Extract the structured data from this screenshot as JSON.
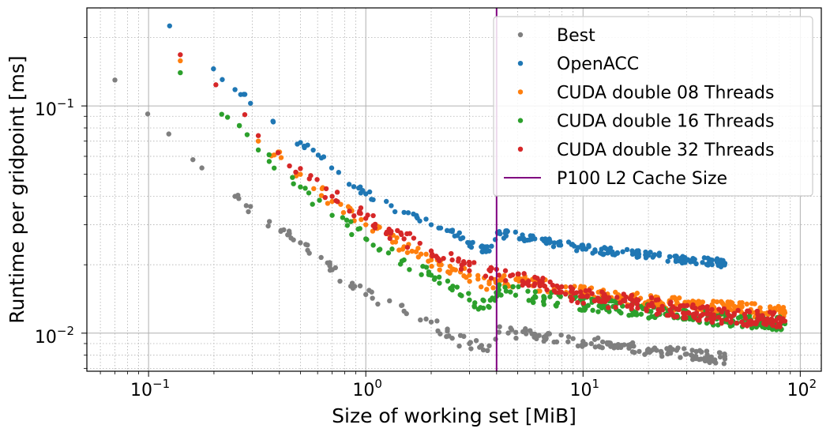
{
  "chart_data": {
    "type": "scatter",
    "xlabel": "Size of working set [MiB]",
    "ylabel": "Runtime per gridpoint [ms]",
    "xscale": "log",
    "yscale": "log",
    "xlim": [
      0.052,
      125
    ],
    "ylim": [
      0.0068,
      0.27
    ],
    "grid": "major and minor",
    "legend_placement": "top-right",
    "x_tick_labels": [
      {
        "base": "10",
        "exp": "−1",
        "value": 0.1
      },
      {
        "base": "10",
        "exp": "0",
        "value": 1
      },
      {
        "base": "10",
        "exp": "1",
        "value": 10
      },
      {
        "base": "10",
        "exp": "2",
        "value": 100
      }
    ],
    "y_tick_labels": [
      {
        "base": "10",
        "exp": "−2",
        "value": 0.01
      },
      {
        "base": "10",
        "exp": "−1",
        "value": 0.1
      }
    ],
    "vline": {
      "name": "P100 L2 Cache Size",
      "x": 4.0,
      "color": "#800080"
    },
    "series": [
      {
        "name": "Best",
        "color": "#7f7f7f",
        "anchors": [
          [
            0.07,
            0.13
          ],
          [
            0.16,
            0.058
          ],
          [
            0.25,
            0.04
          ],
          [
            0.36,
            0.031
          ],
          [
            0.5,
            0.025
          ],
          [
            0.7,
            0.019
          ],
          [
            1.0,
            0.0148
          ],
          [
            1.5,
            0.0125
          ],
          [
            2.0,
            0.0112
          ],
          [
            2.5,
            0.0095
          ],
          [
            3.0,
            0.009
          ],
          [
            3.7,
            0.0088
          ],
          [
            4.1,
            0.0101
          ],
          [
            6.0,
            0.0099
          ],
          [
            10,
            0.0092
          ],
          [
            20,
            0.0085
          ],
          [
            30,
            0.0081
          ],
          [
            45,
            0.0077
          ]
        ],
        "points": 190,
        "spread": 0.05
      },
      {
        "name": "OpenACC",
        "color": "#1f77b4",
        "anchors": [
          [
            0.125,
            0.225
          ],
          [
            0.25,
            0.118
          ],
          [
            0.375,
            0.085
          ],
          [
            0.5,
            0.069
          ],
          [
            0.625,
            0.059
          ],
          [
            0.75,
            0.051
          ],
          [
            1.0,
            0.041
          ],
          [
            1.5,
            0.034
          ],
          [
            2.0,
            0.03
          ],
          [
            2.5,
            0.028
          ],
          [
            3.0,
            0.025
          ],
          [
            3.7,
            0.023
          ],
          [
            4.05,
            0.0275
          ],
          [
            6.0,
            0.026
          ],
          [
            10,
            0.0235
          ],
          [
            20,
            0.022
          ],
          [
            30,
            0.021
          ],
          [
            45,
            0.0203
          ]
        ],
        "points": 200,
        "spread": 0.035
      },
      {
        "name": "CUDA double 08 Threads",
        "color": "#ff7f0e",
        "anchors": [
          [
            0.14,
            0.158
          ],
          [
            0.32,
            0.07
          ],
          [
            0.5,
            0.05
          ],
          [
            0.7,
            0.038
          ],
          [
            1.0,
            0.03
          ],
          [
            1.5,
            0.024
          ],
          [
            2.0,
            0.021
          ],
          [
            2.5,
            0.019
          ],
          [
            3.0,
            0.018
          ],
          [
            3.7,
            0.0165
          ],
          [
            4.1,
            0.017
          ],
          [
            6.0,
            0.0165
          ],
          [
            10,
            0.015
          ],
          [
            20,
            0.0138
          ],
          [
            40,
            0.013
          ],
          [
            85,
            0.0123
          ]
        ],
        "points": 280,
        "spread": 0.06
      },
      {
        "name": "CUDA double 16 Threads",
        "color": "#2ca02c",
        "anchors": [
          [
            0.14,
            0.14
          ],
          [
            0.32,
            0.064
          ],
          [
            0.5,
            0.044
          ],
          [
            0.7,
            0.033
          ],
          [
            1.0,
            0.026
          ],
          [
            1.5,
            0.021
          ],
          [
            2.0,
            0.018
          ],
          [
            2.5,
            0.0155
          ],
          [
            3.0,
            0.014
          ],
          [
            3.7,
            0.013
          ],
          [
            4.1,
            0.0155
          ],
          [
            6.0,
            0.0145
          ],
          [
            10,
            0.0135
          ],
          [
            20,
            0.0125
          ],
          [
            40,
            0.0116
          ],
          [
            85,
            0.011
          ]
        ],
        "points": 280,
        "spread": 0.06
      },
      {
        "name": "CUDA double 32 Threads",
        "color": "#d62728",
        "anchors": [
          [
            0.14,
            0.168
          ],
          [
            0.32,
            0.074
          ],
          [
            0.5,
            0.053
          ],
          [
            0.7,
            0.04
          ],
          [
            1.0,
            0.032
          ],
          [
            1.5,
            0.026
          ],
          [
            2.0,
            0.023
          ],
          [
            2.5,
            0.021
          ],
          [
            3.0,
            0.02
          ],
          [
            3.7,
            0.019
          ],
          [
            4.1,
            0.018
          ],
          [
            6.0,
            0.0165
          ],
          [
            10,
            0.0145
          ],
          [
            20,
            0.0133
          ],
          [
            40,
            0.012
          ],
          [
            85,
            0.0113
          ]
        ],
        "points": 280,
        "spread": 0.07
      }
    ]
  },
  "legend": [
    {
      "label": "Best",
      "kind": "marker",
      "color": "#7f7f7f"
    },
    {
      "label": "OpenACC",
      "kind": "marker",
      "color": "#1f77b4"
    },
    {
      "label": "CUDA double 08 Threads",
      "kind": "marker",
      "color": "#ff7f0e"
    },
    {
      "label": "CUDA double 16 Threads",
      "kind": "marker",
      "color": "#2ca02c"
    },
    {
      "label": "CUDA double 32 Threads",
      "kind": "marker",
      "color": "#d62728"
    },
    {
      "label": "P100 L2 Cache Size",
      "kind": "line",
      "color": "#800080"
    }
  ]
}
